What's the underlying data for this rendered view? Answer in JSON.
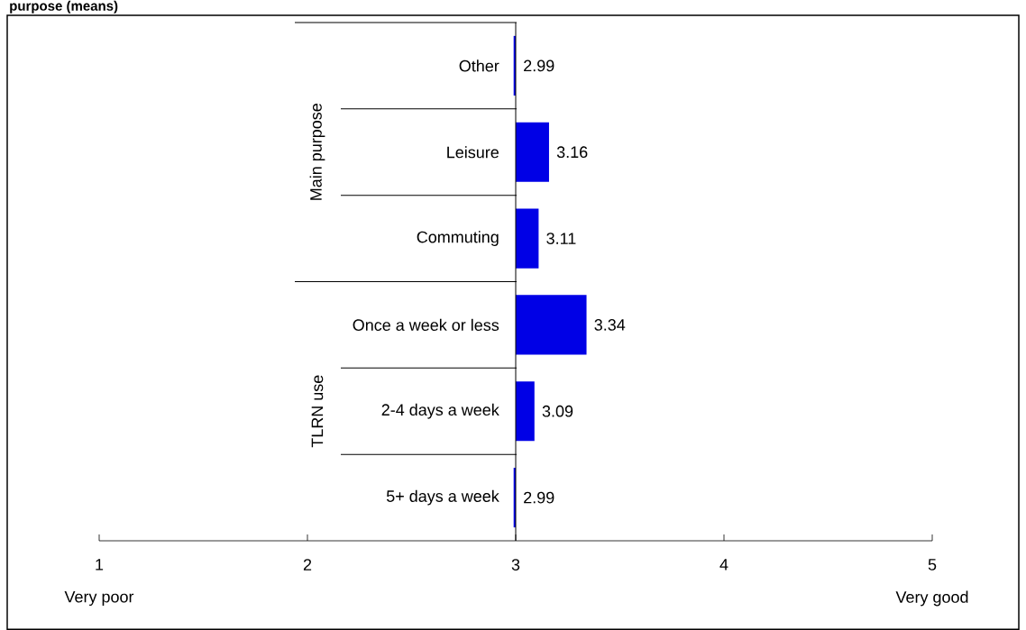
{
  "chart_data": {
    "type": "bar",
    "orientation": "horizontal",
    "title": "purpose (means)",
    "categories": [
      "Other",
      "Leisure",
      "Commuting",
      "Once a week or less",
      "2-4 days a week",
      "5+ days a week"
    ],
    "base": [
      3,
      3,
      3,
      3,
      3,
      3
    ],
    "values": [
      -0.01,
      0.16,
      0.11,
      0.34,
      0.09,
      -0.01
    ],
    "value_labels": [
      "2.99",
      "3.16",
      "3.11",
      "3.34",
      "3.09",
      "2.99"
    ],
    "color": "#0000e6",
    "xlim": [
      1,
      5
    ],
    "xticks": [
      1,
      2,
      3,
      4,
      5
    ],
    "annotations": [
      "Main purpose",
      "TLRN use",
      "Very poor",
      "Very good"
    ]
  }
}
